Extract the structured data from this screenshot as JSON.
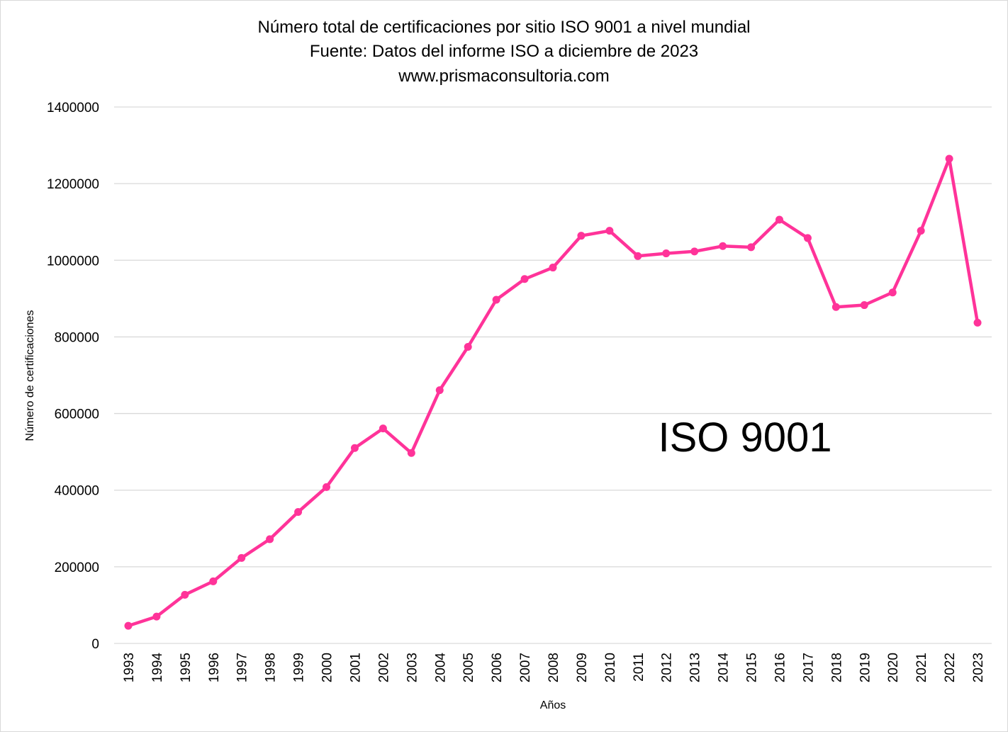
{
  "chart_data": {
    "type": "line",
    "title_lines": [
      "Número total de certificaciones por sitio ISO 9001 a nivel mundial",
      "Fuente: Datos del informe ISO  a diciembre de 2023",
      "www.prismaconsultoria.com"
    ],
    "xlabel": "Años",
    "ylabel": "Número de certificaciones",
    "ylim": [
      0,
      1400000
    ],
    "yticks": [
      0,
      200000,
      400000,
      600000,
      800000,
      1000000,
      1200000,
      1400000
    ],
    "grid": true,
    "annotation": "ISO 9001",
    "line_color": "#FF3399",
    "gridline_color": "#D9D9D9",
    "x": [
      "1993",
      "1994",
      "1995",
      "1996",
      "1997",
      "1998",
      "1999",
      "2000",
      "2001",
      "2002",
      "2003",
      "2004",
      "2005",
      "2006",
      "2007",
      "2008",
      "2009",
      "2010",
      "2011",
      "2012",
      "2013",
      "2014",
      "2015",
      "2016",
      "2017",
      "2018",
      "2019",
      "2020",
      "2021",
      "2022",
      "2023"
    ],
    "series": [
      {
        "values": [
          46000,
          70000,
          127000,
          162000,
          223000,
          272000,
          343000,
          408000,
          510000,
          561000,
          497000,
          661000,
          774000,
          897000,
          951000,
          981000,
          1064000,
          1077000,
          1011000,
          1018000,
          1023000,
          1037000,
          1034000,
          1106000,
          1058000,
          878000,
          883000,
          916000,
          1077000,
          1265000,
          837000
        ]
      }
    ]
  }
}
